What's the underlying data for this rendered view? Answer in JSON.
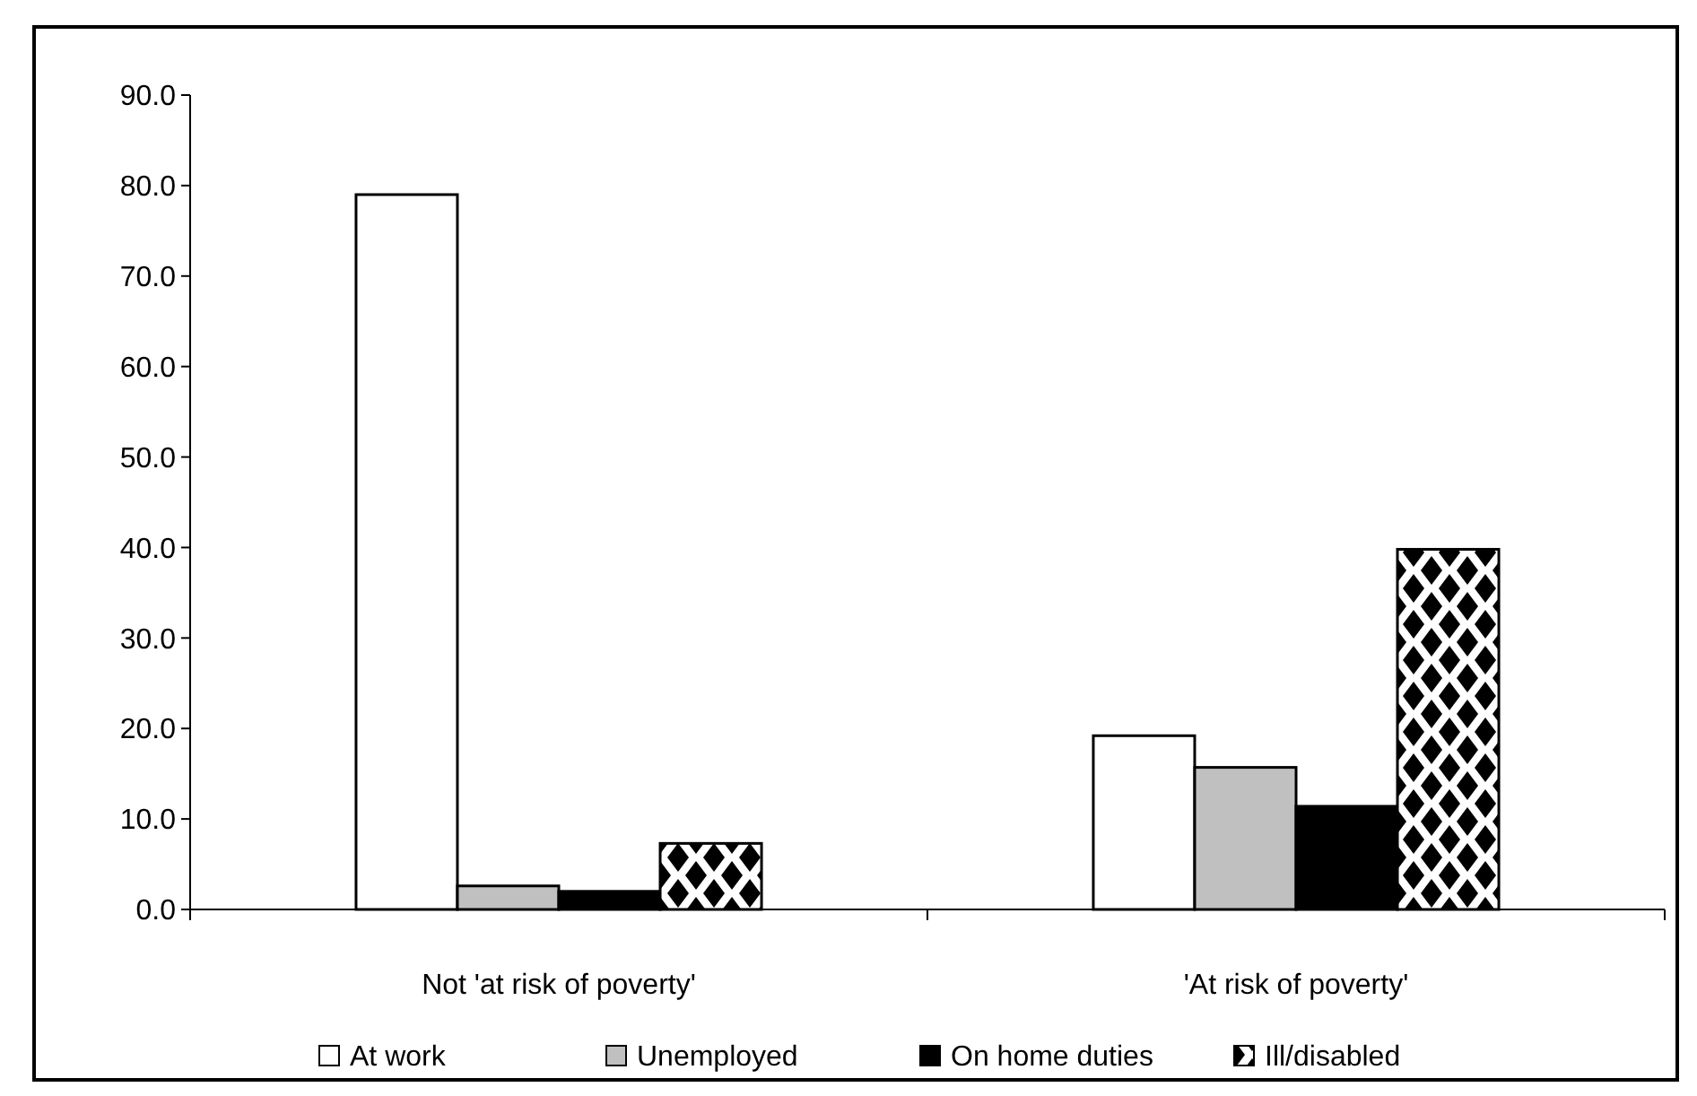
{
  "chart_data": {
    "type": "bar",
    "categories": [
      "Not 'at risk of poverty'",
      "'At risk of poverty'"
    ],
    "series": [
      {
        "name": "At work",
        "color": "#ffffff",
        "values": [
          79.0,
          19.2
        ]
      },
      {
        "name": "Unemployed",
        "color": "#c0c0c0",
        "values": [
          2.6,
          15.7
        ]
      },
      {
        "name": "On home duties",
        "color": "#000000",
        "values": [
          2.0,
          11.4
        ]
      },
      {
        "name": "Ill/disabled",
        "color": "#000000",
        "values": [
          7.3,
          39.8
        ]
      }
    ],
    "ylim": [
      0,
      90
    ],
    "yticks": [
      {
        "value": 0,
        "label": "0.0"
      },
      {
        "value": 10,
        "label": "10.0"
      },
      {
        "value": 20,
        "label": "20.0"
      },
      {
        "value": 30,
        "label": "30.0"
      },
      {
        "value": 40,
        "label": "40.0"
      },
      {
        "value": 50,
        "label": "50.0"
      },
      {
        "value": 60,
        "label": "60.0"
      },
      {
        "value": 70,
        "label": "70.0"
      },
      {
        "value": 80,
        "label": "80.0"
      },
      {
        "value": 90,
        "label": "90.0"
      }
    ],
    "grid": false,
    "legend": "bottom"
  }
}
